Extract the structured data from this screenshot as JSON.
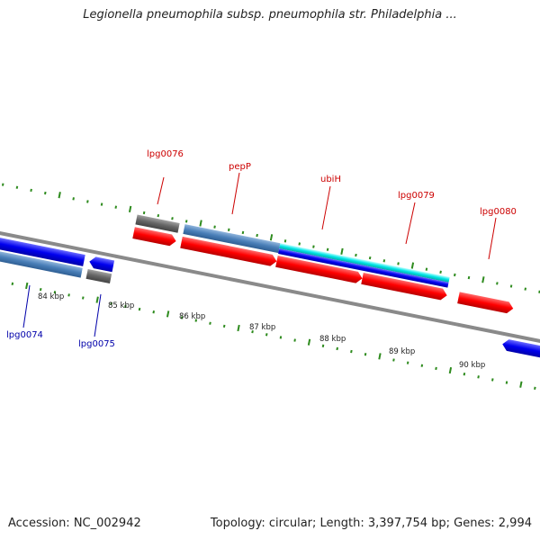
{
  "title": "Legionella pneumophila subsp. pneumophila str. Philadelphia ...",
  "footer": {
    "accession": "Accession: NC_002942",
    "summary": "Topology: circular; Length: 3,397,754 bp; Genes: 2,994"
  },
  "colors": {
    "tick": "#2e8b1e",
    "backbone": "#8a8a8a",
    "forward_label": "#cc0000",
    "reverse_label": "#0000aa"
  },
  "scale": {
    "labels": [
      "84 kbp",
      "85 kbp",
      "86 kbp",
      "87 kbp",
      "88 kbp",
      "89 kbp",
      "90 kbp"
    ]
  },
  "genes": {
    "forward_labels": [
      "lpg0076",
      "pepP",
      "ubiH",
      "lpg0079",
      "lpg0080"
    ],
    "reverse_labels": [
      "lpg0074",
      "lpg0075"
    ]
  }
}
